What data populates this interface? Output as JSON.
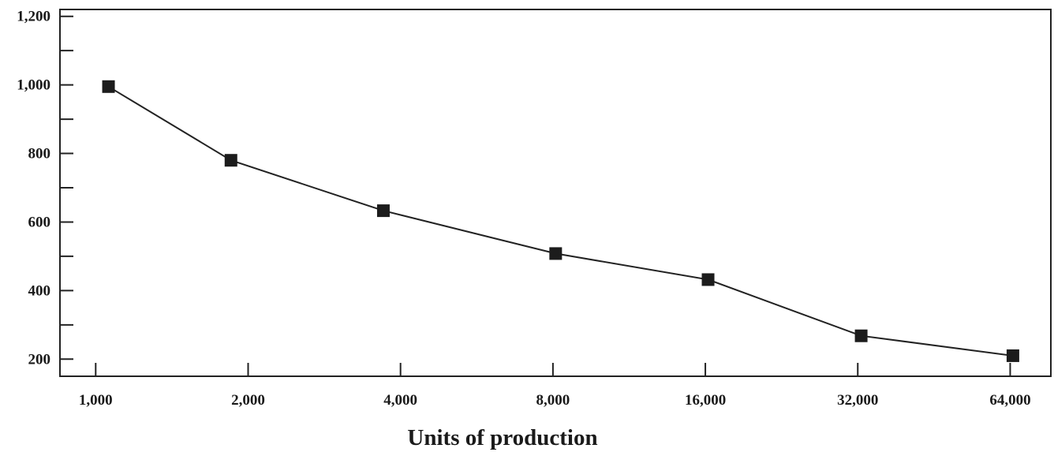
{
  "chart_data": {
    "type": "line",
    "title": "",
    "xlabel": "Units of production",
    "ylabel": "",
    "x_scale": "log2",
    "x_ticks": [
      1000,
      2000,
      4000,
      8000,
      16000,
      32000,
      64000
    ],
    "x_tick_labels": [
      "1,000",
      "2,000",
      "4,000",
      "8,000",
      "16,000",
      "32,000",
      "64,000"
    ],
    "y_ticks": [
      200,
      400,
      600,
      800,
      1000,
      1200
    ],
    "y_tick_labels": [
      "200",
      "400",
      "600",
      "800",
      "1,000",
      "1,200"
    ],
    "y_minor_ticks": [
      300,
      500,
      700,
      900,
      1100
    ],
    "xlim": [
      850,
      77000
    ],
    "ylim": [
      150,
      1220
    ],
    "grid": false,
    "legend": "none",
    "marker": "square",
    "series": [
      {
        "x": [
          1060,
          1850,
          3700,
          8100,
          16200,
          32500,
          64800
        ],
        "y": [
          995,
          780,
          633,
          508,
          432,
          268,
          210
        ]
      }
    ]
  }
}
